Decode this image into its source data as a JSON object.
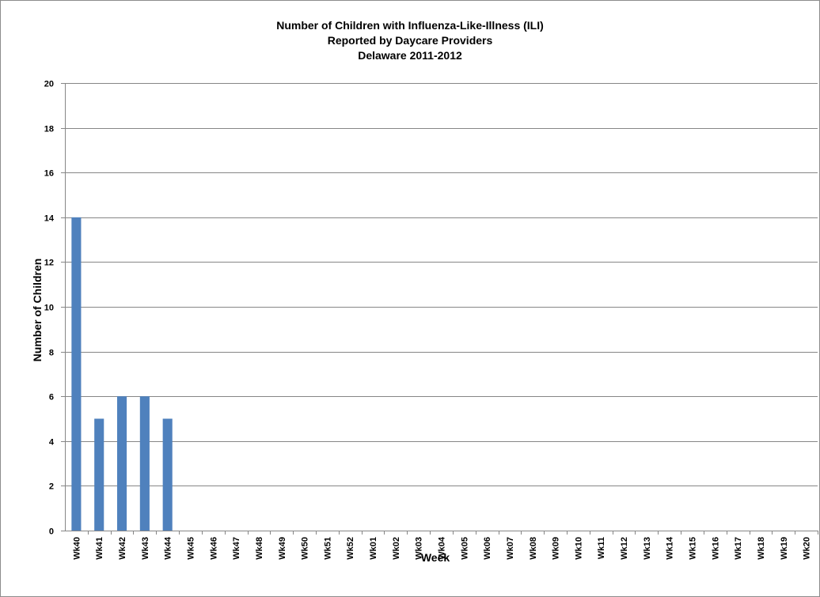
{
  "chart_data": {
    "type": "bar",
    "title_lines": [
      "Number of Children with Influenza-Like-Illness (ILI)",
      "Reported by Daycare Providers",
      "Delaware 2011-2012"
    ],
    "xlabel": "Week",
    "ylabel": "Number of Children",
    "ylim": [
      0,
      20
    ],
    "yticks": [
      0,
      2,
      4,
      6,
      8,
      10,
      12,
      14,
      16,
      18,
      20
    ],
    "grid": true,
    "bar_color": "#4f81bd",
    "categories": [
      "Wk40",
      "Wk41",
      "Wk42",
      "Wk43",
      "Wk44",
      "Wk45",
      "Wk46",
      "Wk47",
      "Wk48",
      "Wk49",
      "Wk50",
      "Wk51",
      "Wk52",
      "Wk01",
      "Wk02",
      "Wk03",
      "Wk04",
      "Wk05",
      "Wk06",
      "Wk07",
      "Wk08",
      "Wk09",
      "Wk10",
      "Wk11",
      "Wk12",
      "Wk13",
      "Wk14",
      "Wk15",
      "Wk16",
      "Wk17",
      "Wk18",
      "Wk19",
      "Wk20"
    ],
    "values": [
      14,
      5,
      6,
      6,
      5,
      null,
      null,
      null,
      null,
      null,
      null,
      null,
      null,
      null,
      null,
      null,
      null,
      null,
      null,
      null,
      null,
      null,
      null,
      null,
      null,
      null,
      null,
      null,
      null,
      null,
      null,
      null,
      null
    ]
  }
}
